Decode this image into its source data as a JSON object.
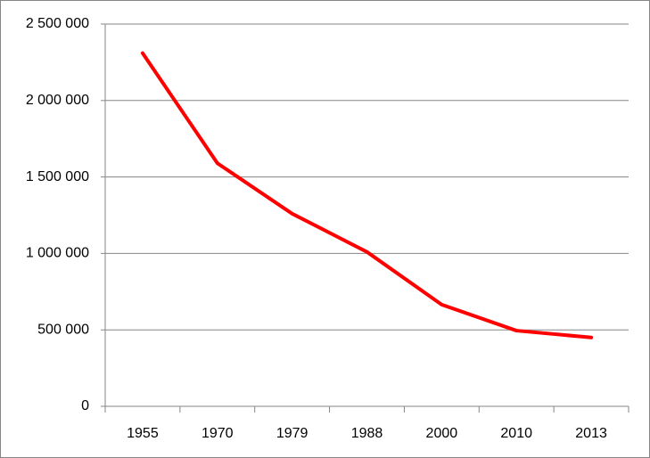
{
  "chart_data": {
    "type": "line",
    "categories": [
      "1955",
      "1970",
      "1979",
      "1988",
      "2000",
      "2010",
      "2013"
    ],
    "series": [
      {
        "name": null,
        "color": "#ff0000",
        "values": [
          2310000,
          1590000,
          1260000,
          1010000,
          665000,
          495000,
          450000
        ]
      }
    ],
    "ylim": [
      0,
      2500000
    ],
    "yticks": [
      0,
      {
        "value": 500000,
        "label": "500 000"
      },
      {
        "value": 1000000,
        "label": "1 000 000"
      },
      {
        "value": 1500000,
        "label": "1 500 000"
      },
      {
        "value": 2000000,
        "label": "2 000 000"
      },
      {
        "value": 2500000,
        "label": "2 500 000"
      }
    ],
    "grid": true
  }
}
